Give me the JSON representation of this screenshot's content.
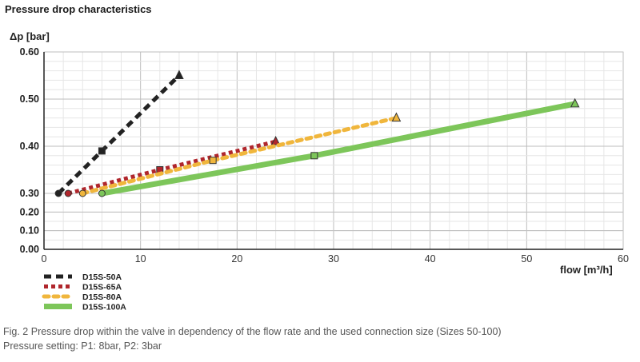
{
  "page": {
    "title": "Pressure drop characteristics"
  },
  "chart_data": {
    "type": "line",
    "ylabel": "Δp [bar]",
    "xlabel": "flow [m³/h]",
    "xlim": [
      0,
      60
    ],
    "ylim": [
      0,
      0.6
    ],
    "grid": true,
    "legend_position": "bottom-left",
    "y_axis_note": "broken scale: 0.00–0.30 compressed, 0.30–0.60 expanded",
    "x_ticks": [
      "0",
      "10",
      "20",
      "30",
      "40",
      "50",
      "60"
    ],
    "y_ticks": [
      {
        "value": 0.0,
        "label": "0.00"
      },
      {
        "value": 0.1,
        "label": "0.10"
      },
      {
        "value": 0.2,
        "label": "0.20"
      },
      {
        "value": 0.3,
        "label": "0.30"
      },
      {
        "value": 0.4,
        "label": "0.40"
      },
      {
        "value": 0.5,
        "label": "0.50"
      },
      {
        "value": 0.6,
        "label": "0.60"
      }
    ],
    "series": [
      {
        "name": "D15S-50A",
        "color": "#222222",
        "dash": "square-dash",
        "points": [
          [
            1.5,
            0.3
          ],
          [
            6,
            0.39
          ],
          [
            14,
            0.55
          ]
        ]
      },
      {
        "name": "D15S-65A",
        "color": "#b0262c",
        "dash": "square-dot",
        "points": [
          [
            2.5,
            0.3
          ],
          [
            12,
            0.35
          ],
          [
            24,
            0.41
          ]
        ]
      },
      {
        "name": "D15S-80A",
        "color": "#f0b63c",
        "dash": "round-dash",
        "points": [
          [
            4,
            0.3
          ],
          [
            17.5,
            0.37
          ],
          [
            36.5,
            0.46
          ]
        ]
      },
      {
        "name": "D15S-100A",
        "color": "#7dc65a",
        "dash": "solid",
        "points": [
          [
            6,
            0.3
          ],
          [
            28,
            0.38
          ],
          [
            55,
            0.49
          ]
        ]
      }
    ]
  },
  "caption": {
    "line1": "Fig. 2 Pressure drop within the valve in dependency of the flow rate and the used connection size (Sizes 50-100)",
    "line2": "Pressure setting: P1: 8bar, P2: 3bar"
  }
}
